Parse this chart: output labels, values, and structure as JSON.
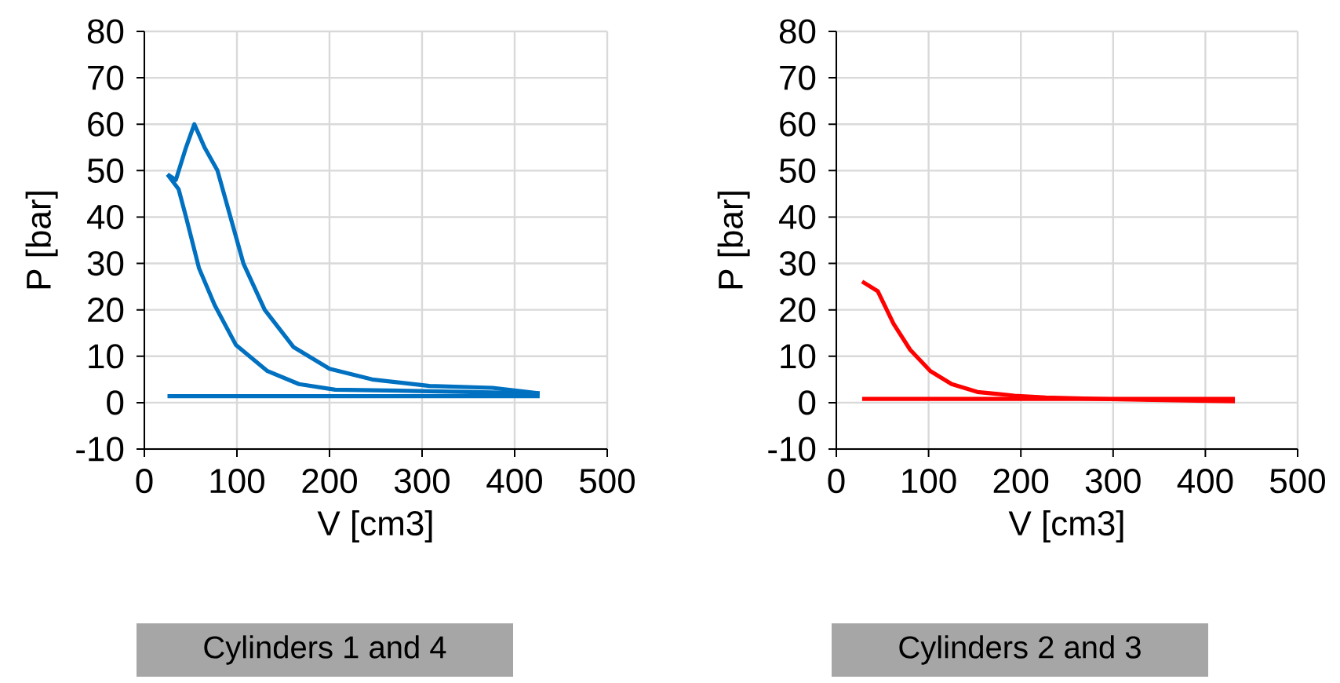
{
  "chart_data": [
    {
      "type": "line",
      "xlabel": "V [cm3]",
      "ylabel": "P [bar]",
      "xlim": [
        0,
        500
      ],
      "ylim": [
        -10,
        80
      ],
      "xticks": [
        0,
        100,
        200,
        300,
        400,
        500
      ],
      "yticks": [
        -10,
        0,
        10,
        20,
        30,
        40,
        50,
        60,
        70,
        80
      ],
      "grid": true,
      "series": [
        {
          "color": "#0070c0",
          "x": [
            25,
            427
          ],
          "values": [
            1.4,
            1.4
          ]
        },
        {
          "color": "#0070c0",
          "x": [
            25,
            37,
            45,
            59,
            76,
            99,
            133,
            167,
            206,
            297,
            376,
            427
          ],
          "values": [
            49.2,
            46,
            40,
            29,
            21,
            12.4,
            6.8,
            4,
            2.8,
            2.5,
            2.2,
            2
          ]
        },
        {
          "color": "#0070c0",
          "x": [
            25,
            34,
            45,
            54,
            65,
            79,
            93,
            107,
            130,
            161,
            200,
            246,
            308,
            376,
            427
          ],
          "values": [
            49.2,
            48,
            55,
            60,
            55,
            50,
            40,
            30,
            20,
            12,
            7.3,
            5,
            3.6,
            3.2,
            2
          ]
        }
      ],
      "annotations": [
        "Cylinders 1 and 4"
      ]
    },
    {
      "type": "line",
      "xlabel": "V [cm3]",
      "ylabel": "P [bar]",
      "xlim": [
        0,
        500
      ],
      "ylim": [
        -10,
        80
      ],
      "xticks": [
        0,
        100,
        200,
        300,
        400,
        500
      ],
      "yticks": [
        -10,
        0,
        10,
        20,
        30,
        40,
        50,
        60,
        70,
        80
      ],
      "grid": true,
      "series": [
        {
          "color": "#ff0000",
          "x": [
            28,
            45,
            62,
            80,
            102,
            125,
            153,
            193,
            227,
            307,
            432
          ],
          "values": [
            26.1,
            24,
            17,
            11.4,
            6.8,
            4,
            2.3,
            1.5,
            1.1,
            0.7,
            0.3
          ]
        },
        {
          "color": "#ff0000",
          "x": [
            28,
            432
          ],
          "values": [
            0.8,
            0.8
          ]
        }
      ],
      "annotations": [
        "Cylinders 2 and 3"
      ]
    }
  ]
}
